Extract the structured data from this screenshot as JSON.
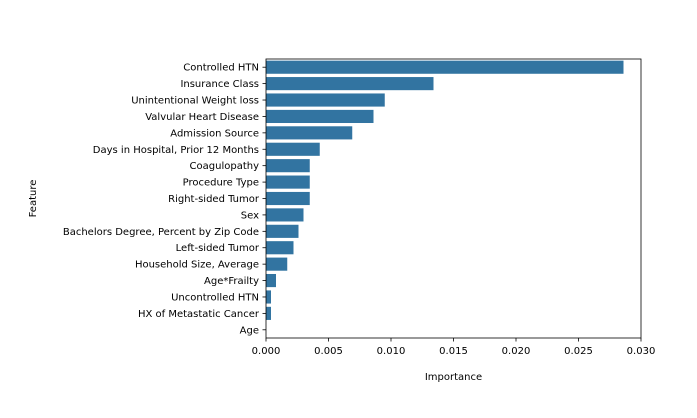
{
  "chart_data": {
    "type": "bar",
    "orientation": "horizontal",
    "title": "",
    "xlabel": "Importance",
    "ylabel": "Feature",
    "xlim": [
      0.0,
      0.03
    ],
    "x_ticks": [
      0.0,
      0.005,
      0.01,
      0.015,
      0.02,
      0.025,
      0.03
    ],
    "x_tick_labels": [
      "0.000",
      "0.005",
      "0.010",
      "0.015",
      "0.020",
      "0.025",
      "0.030"
    ],
    "grid": false,
    "legend": "none",
    "bar_color": "#3274a1",
    "categories": [
      "Controlled HTN",
      "Insurance Class",
      "Unintentional Weight loss",
      "Valvular Heart Disease",
      "Admission Source",
      "Days in Hospital, Prior 12 Months",
      "Coagulopathy",
      "Procedure Type",
      "Right-sided Tumor",
      "Sex",
      "Bachelors Degree, Percent by Zip Code",
      "Left-sided Tumor",
      "Household Size, Average",
      "Age*Frailty",
      "Uncontrolled HTN",
      "HX of Metastatic Cancer",
      "Age"
    ],
    "values": [
      0.0286,
      0.0134,
      0.0095,
      0.0086,
      0.0069,
      0.0043,
      0.0035,
      0.0035,
      0.0035,
      0.003,
      0.0026,
      0.0022,
      0.0017,
      0.0008,
      0.0004,
      0.0004,
      0.0
    ]
  }
}
